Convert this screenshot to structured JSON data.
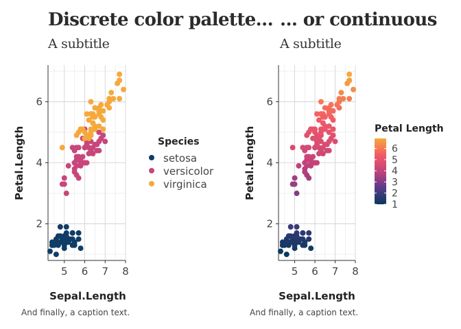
{
  "colors": {
    "setosa": "#0f3d66",
    "versicolor": "#c8467b",
    "virginica": "#f5a93b",
    "gradient": [
      "#07395a",
      "#5b3a8c",
      "#c2427a",
      "#f35a66",
      "#f5a93b"
    ]
  },
  "chart_data": [
    {
      "type": "scatter",
      "title": "Discrete color palette...",
      "subtitle": "A subtitle",
      "caption": "And finally, a caption text.",
      "xlabel": "Sepal.Length",
      "ylabel": "Petal.Length",
      "xlim": [
        4.2,
        8.0
      ],
      "ylim": [
        0.8,
        7.2
      ],
      "xticks": [
        5,
        6,
        7,
        8
      ],
      "yticks": [
        2,
        4,
        6
      ],
      "grid": true,
      "legend": {
        "title": "Species",
        "position": "right",
        "entries": [
          "setosa",
          "versicolor",
          "virginica"
        ]
      },
      "series": [
        {
          "name": "setosa",
          "points": [
            [
              5.1,
              1.4
            ],
            [
              4.9,
              1.4
            ],
            [
              4.7,
              1.3
            ],
            [
              4.6,
              1.5
            ],
            [
              5.0,
              1.4
            ],
            [
              5.4,
              1.7
            ],
            [
              4.6,
              1.4
            ],
            [
              5.0,
              1.5
            ],
            [
              4.4,
              1.4
            ],
            [
              4.9,
              1.5
            ],
            [
              5.4,
              1.5
            ],
            [
              4.8,
              1.6
            ],
            [
              4.8,
              1.4
            ],
            [
              4.3,
              1.1
            ],
            [
              5.8,
              1.2
            ],
            [
              5.7,
              1.5
            ],
            [
              5.4,
              1.3
            ],
            [
              5.1,
              1.4
            ],
            [
              5.7,
              1.7
            ],
            [
              5.1,
              1.5
            ],
            [
              5.4,
              1.7
            ],
            [
              5.1,
              1.5
            ],
            [
              4.6,
              1.0
            ],
            [
              5.1,
              1.7
            ],
            [
              4.8,
              1.9
            ],
            [
              5.0,
              1.6
            ],
            [
              5.0,
              1.6
            ],
            [
              5.2,
              1.5
            ],
            [
              5.2,
              1.4
            ],
            [
              4.7,
              1.6
            ],
            [
              4.8,
              1.6
            ],
            [
              5.4,
              1.5
            ],
            [
              5.2,
              1.5
            ],
            [
              5.5,
              1.4
            ],
            [
              4.9,
              1.5
            ],
            [
              5.0,
              1.2
            ],
            [
              5.5,
              1.3
            ],
            [
              4.9,
              1.4
            ],
            [
              4.4,
              1.3
            ],
            [
              5.1,
              1.5
            ],
            [
              5.0,
              1.3
            ],
            [
              4.5,
              1.3
            ],
            [
              4.4,
              1.3
            ],
            [
              5.0,
              1.6
            ],
            [
              5.1,
              1.9
            ],
            [
              4.8,
              1.4
            ],
            [
              5.1,
              1.6
            ],
            [
              4.6,
              1.4
            ],
            [
              5.3,
              1.5
            ],
            [
              5.0,
              1.4
            ]
          ]
        },
        {
          "name": "versicolor",
          "points": [
            [
              7.0,
              4.7
            ],
            [
              6.4,
              4.5
            ],
            [
              6.9,
              4.9
            ],
            [
              5.5,
              4.0
            ],
            [
              6.5,
              4.6
            ],
            [
              5.7,
              4.5
            ],
            [
              6.3,
              4.7
            ],
            [
              4.9,
              3.3
            ],
            [
              6.6,
              4.6
            ],
            [
              5.2,
              3.9
            ],
            [
              5.0,
              3.5
            ],
            [
              5.9,
              4.2
            ],
            [
              6.0,
              4.0
            ],
            [
              6.1,
              4.7
            ],
            [
              5.6,
              3.6
            ],
            [
              6.7,
              4.4
            ],
            [
              5.6,
              4.5
            ],
            [
              5.8,
              4.1
            ],
            [
              6.2,
              4.5
            ],
            [
              5.6,
              3.9
            ],
            [
              5.9,
              4.8
            ],
            [
              6.1,
              4.0
            ],
            [
              6.3,
              4.9
            ],
            [
              6.1,
              4.7
            ],
            [
              6.4,
              4.3
            ],
            [
              6.6,
              4.4
            ],
            [
              6.8,
              4.8
            ],
            [
              6.7,
              5.0
            ],
            [
              6.0,
              4.5
            ],
            [
              5.7,
              3.5
            ],
            [
              5.5,
              3.8
            ],
            [
              5.5,
              3.7
            ],
            [
              5.8,
              3.9
            ],
            [
              6.0,
              5.1
            ],
            [
              5.4,
              4.5
            ],
            [
              6.0,
              4.5
            ],
            [
              6.7,
              4.7
            ],
            [
              6.3,
              4.4
            ],
            [
              5.6,
              4.1
            ],
            [
              5.5,
              4.0
            ],
            [
              5.5,
              4.4
            ],
            [
              6.1,
              4.6
            ],
            [
              5.8,
              4.0
            ],
            [
              5.0,
              3.3
            ],
            [
              5.6,
              4.2
            ],
            [
              5.7,
              4.2
            ],
            [
              5.7,
              4.2
            ],
            [
              6.2,
              4.3
            ],
            [
              5.1,
              3.0
            ],
            [
              5.7,
              4.1
            ]
          ]
        },
        {
          "name": "virginica",
          "points": [
            [
              6.3,
              6.0
            ],
            [
              5.8,
              5.1
            ],
            [
              7.1,
              5.9
            ],
            [
              6.3,
              5.6
            ],
            [
              6.5,
              5.8
            ],
            [
              7.6,
              6.6
            ],
            [
              4.9,
              4.5
            ],
            [
              7.3,
              6.3
            ],
            [
              6.7,
              5.8
            ],
            [
              7.2,
              6.1
            ],
            [
              6.5,
              5.1
            ],
            [
              6.4,
              5.3
            ],
            [
              6.8,
              5.5
            ],
            [
              5.7,
              5.0
            ],
            [
              5.8,
              5.1
            ],
            [
              6.4,
              5.3
            ],
            [
              6.5,
              5.5
            ],
            [
              7.7,
              6.7
            ],
            [
              7.7,
              6.9
            ],
            [
              6.0,
              5.0
            ],
            [
              6.9,
              5.7
            ],
            [
              5.6,
              4.9
            ],
            [
              7.7,
              6.7
            ],
            [
              6.3,
              4.9
            ],
            [
              6.7,
              5.7
            ],
            [
              7.2,
              6.0
            ],
            [
              6.2,
              4.8
            ],
            [
              6.1,
              4.9
            ],
            [
              6.4,
              5.6
            ],
            [
              7.2,
              5.8
            ],
            [
              7.4,
              6.1
            ],
            [
              7.9,
              6.4
            ],
            [
              6.4,
              5.6
            ],
            [
              6.3,
              5.1
            ],
            [
              6.1,
              5.6
            ],
            [
              7.7,
              6.1
            ],
            [
              6.3,
              5.6
            ],
            [
              6.4,
              5.5
            ],
            [
              6.0,
              4.8
            ],
            [
              6.9,
              5.4
            ],
            [
              6.7,
              5.6
            ],
            [
              6.9,
              5.1
            ],
            [
              5.8,
              5.1
            ],
            [
              6.8,
              5.9
            ],
            [
              6.7,
              5.7
            ],
            [
              6.7,
              5.2
            ],
            [
              6.3,
              5.0
            ],
            [
              6.5,
              5.2
            ],
            [
              6.2,
              5.4
            ],
            [
              5.9,
              5.1
            ]
          ]
        }
      ]
    },
    {
      "type": "scatter",
      "title": "... or continuous",
      "subtitle": "A subtitle",
      "caption": "And finally, a caption text.",
      "xlabel": "Sepal.Length",
      "ylabel": "Petal.Length",
      "xlim": [
        4.2,
        8.0
      ],
      "ylim": [
        0.8,
        7.2
      ],
      "xticks": [
        5,
        6,
        7,
        8
      ],
      "yticks": [
        2,
        4,
        6
      ],
      "grid": true,
      "color_by": "Petal.Length",
      "legend": {
        "title": "Petal Length",
        "position": "right",
        "type": "colorbar",
        "range": [
          1,
          6.9
        ],
        "ticks": [
          1,
          2,
          3,
          4,
          5,
          6
        ]
      }
    }
  ]
}
